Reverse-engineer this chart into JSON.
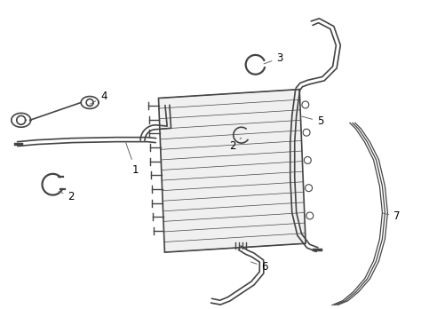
{
  "background_color": "#ffffff",
  "line_color": "#444444",
  "label_color": "#000000",
  "fig_width": 4.74,
  "fig_height": 3.48,
  "dpi": 100,
  "label_fontsize": 8.5
}
